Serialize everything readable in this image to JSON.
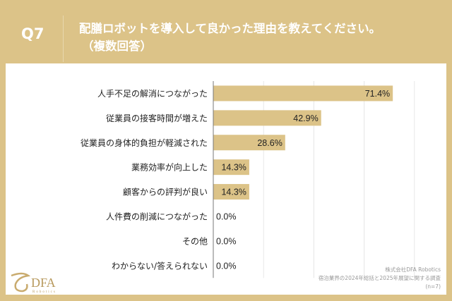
{
  "header": {
    "question": "Q7",
    "title_line1": "配膳ロボットを導入して良かった理由を教えてください。",
    "title_line2": "（複数回答）"
  },
  "colors": {
    "background": "#dcc388",
    "bar": "#dcc388",
    "grid": "#e6e6e6"
  },
  "chart_data": {
    "type": "bar",
    "orientation": "horizontal",
    "categories": [
      "人手不足の解消につながった",
      "従業員の接客時間が増えた",
      "従業員の身体的負担が軽減された",
      "業務効率が向上した",
      "顧客からの評判が良い",
      "人件費の削減につながった",
      "その他",
      "わからない/答えられない"
    ],
    "values": [
      71.4,
      42.9,
      28.6,
      14.3,
      14.3,
      0.0,
      0.0,
      0.0
    ],
    "labels": [
      "71.4%",
      "42.9%",
      "28.6%",
      "14.3%",
      "14.3%",
      "0.0%",
      "0.0%",
      "0.0%"
    ],
    "xlim": [
      0,
      90
    ],
    "grid": true
  },
  "footer": {
    "company": "株式会社DFA Robotics",
    "survey": "宿泊業界の2024年総括と2025年展望に関する調査",
    "n": "(n=7)"
  },
  "logo": {
    "text": "DFA",
    "sub": "Robotics"
  }
}
